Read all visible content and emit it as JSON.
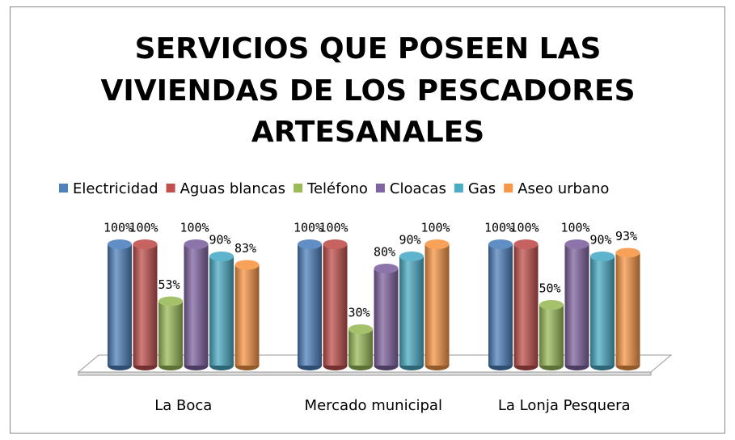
{
  "chart_data": {
    "type": "bar3d",
    "title": [
      "SERVICIOS QUE POSEEN LAS",
      "VIVIENDAS DE LOS PESCADORES",
      "ARTESANALES"
    ],
    "categories": [
      "La Boca",
      "Mercado municipal",
      "La Lonja Pesquera"
    ],
    "series": [
      {
        "name": "Electricidad",
        "color": "#4f81bd",
        "values": [
          100,
          100,
          100
        ],
        "value_labels": [
          "100%",
          "100%",
          "100%"
        ]
      },
      {
        "name": "Aguas blancas",
        "color": "#c0504d",
        "values": [
          100,
          100,
          100
        ],
        "value_labels": [
          "100%",
          "100%",
          "100%"
        ]
      },
      {
        "name": "Teléfono",
        "color": "#9bbb59",
        "values": [
          53,
          30,
          50
        ],
        "value_labels": [
          "53%",
          "30%",
          "50%"
        ]
      },
      {
        "name": "Cloacas",
        "color": "#8064a2",
        "values": [
          100,
          80,
          100
        ],
        "value_labels": [
          "100%",
          "80%",
          "100%"
        ]
      },
      {
        "name": "Gas",
        "color": "#4bacc6",
        "values": [
          90,
          90,
          90
        ],
        "value_labels": [
          "90%",
          "90%",
          "90%"
        ]
      },
      {
        "name": "Aseo urbano",
        "color": "#f79646",
        "values": [
          83,
          100,
          93
        ],
        "value_labels": [
          "83%",
          "100%",
          "93%"
        ]
      }
    ],
    "legend": "top"
  }
}
